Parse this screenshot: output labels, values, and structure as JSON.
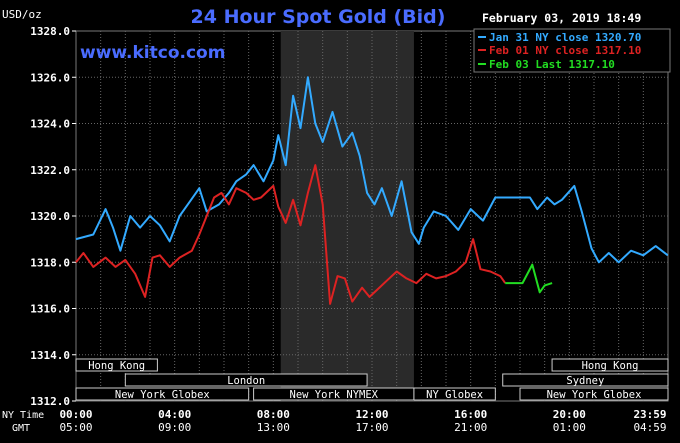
{
  "chart_data": {
    "type": "line",
    "title": "24 Hour Spot Gold (Bid)",
    "timestamp": "February 03, 2019 18:49",
    "site": "www.kitco.com",
    "ylabel": "USD/oz",
    "ylim": [
      1312,
      1328
    ],
    "yticks": [
      "1312.0",
      "1314.0",
      "1316.0",
      "1318.0",
      "1320.0",
      "1322.0",
      "1324.0",
      "1326.0",
      "1328.0"
    ],
    "xlim_hours": [
      0,
      24
    ],
    "xticks_ny": [
      "00:00",
      "04:00",
      "08:00",
      "12:00",
      "16:00",
      "20:00",
      "23:59"
    ],
    "xticks_gmt": [
      "05:00",
      "09:00",
      "13:00",
      "17:00",
      "21:00",
      "01:00",
      "04:59"
    ],
    "x_row_labels": [
      "NY Time",
      "GMT"
    ],
    "grid": true,
    "legend_position": "top-right",
    "shaded_hours": [
      8.3,
      13.7
    ],
    "markets": [
      {
        "name": "Hong Kong",
        "start": 0,
        "end": 3.3,
        "row": 0
      },
      {
        "name": "Hong Kong",
        "start": 19.3,
        "end": 24,
        "row": 0
      },
      {
        "name": "London",
        "start": 2.0,
        "end": 11.8,
        "row": 1
      },
      {
        "name": "Sydney",
        "start": 17.3,
        "end": 24,
        "row": 1
      },
      {
        "name": "New York Globex",
        "start": 0,
        "end": 7.0,
        "row": 2
      },
      {
        "name": "New York NYMEX",
        "start": 7.2,
        "end": 13.7,
        "row": 2
      },
      {
        "name": "NY Globex",
        "start": 13.7,
        "end": 17.0,
        "row": 2
      },
      {
        "name": "New York Globex",
        "start": 18.0,
        "end": 24,
        "row": 2
      }
    ],
    "series": [
      {
        "name": "Jan 31 NY close 1320.70",
        "color": "#33aaff",
        "x": [
          0,
          0.7,
          1.2,
          1.5,
          1.8,
          2.2,
          2.6,
          3.0,
          3.4,
          3.8,
          4.2,
          4.6,
          5.0,
          5.3,
          5.8,
          6.2,
          6.5,
          6.9,
          7.2,
          7.6,
          8.0,
          8.2,
          8.5,
          8.8,
          9.1,
          9.4,
          9.7,
          10.0,
          10.4,
          10.8,
          11.2,
          11.5,
          11.8,
          12.1,
          12.4,
          12.8,
          13.2,
          13.6,
          13.9,
          14.1,
          14.5,
          15.0,
          15.5,
          16.0,
          16.5,
          17.0,
          17.5,
          18.0,
          18.4,
          18.7,
          19.1,
          19.4,
          19.7,
          20.2,
          20.5,
          20.9,
          21.2,
          21.6,
          22.0,
          22.5,
          23.0,
          23.5,
          23.99
        ],
        "y": [
          1319.0,
          1319.2,
          1320.3,
          1319.5,
          1318.5,
          1320.0,
          1319.5,
          1320.0,
          1319.6,
          1318.9,
          1320.0,
          1320.6,
          1321.2,
          1320.2,
          1320.5,
          1321.0,
          1321.5,
          1321.8,
          1322.2,
          1321.5,
          1322.4,
          1323.5,
          1322.2,
          1325.2,
          1323.8,
          1326.0,
          1324.0,
          1323.2,
          1324.5,
          1323.0,
          1323.6,
          1322.6,
          1321.0,
          1320.5,
          1321.2,
          1320.0,
          1321.5,
          1319.3,
          1318.8,
          1319.5,
          1320.2,
          1320.0,
          1319.4,
          1320.3,
          1319.8,
          1320.8,
          1320.8,
          1320.8,
          1320.8,
          1320.3,
          1320.8,
          1320.5,
          1320.7,
          1321.3,
          1320.2,
          1318.6,
          1318.0,
          1318.4,
          1318.0,
          1318.5,
          1318.3,
          1318.7,
          1318.3
        ]
      },
      {
        "name": "Feb 01 NY close 1317.10",
        "color": "#dd2222",
        "x": [
          0,
          0.3,
          0.7,
          1.2,
          1.6,
          2.0,
          2.4,
          2.8,
          3.1,
          3.4,
          3.8,
          4.2,
          4.7,
          5.0,
          5.3,
          5.6,
          5.9,
          6.2,
          6.5,
          6.9,
          7.2,
          7.5,
          8.0,
          8.2,
          8.5,
          8.8,
          9.1,
          9.4,
          9.7,
          10.0,
          10.3,
          10.6,
          10.9,
          11.2,
          11.6,
          11.9,
          12.2,
          12.6,
          13.0,
          13.4,
          13.8,
          14.2,
          14.6,
          15.0,
          15.4,
          15.8,
          16.1,
          16.4,
          16.8,
          17.2,
          17.4
        ],
        "y": [
          1318.0,
          1318.4,
          1317.8,
          1318.2,
          1317.8,
          1318.1,
          1317.5,
          1316.5,
          1318.2,
          1318.3,
          1317.8,
          1318.2,
          1318.5,
          1319.2,
          1320.0,
          1320.8,
          1321.0,
          1320.5,
          1321.2,
          1321.0,
          1320.7,
          1320.8,
          1321.3,
          1320.4,
          1319.7,
          1320.7,
          1319.6,
          1321.0,
          1322.2,
          1320.5,
          1316.2,
          1317.4,
          1317.3,
          1316.3,
          1316.9,
          1316.5,
          1316.8,
          1317.2,
          1317.6,
          1317.3,
          1317.1,
          1317.5,
          1317.3,
          1317.4,
          1317.6,
          1318.0,
          1319.0,
          1317.7,
          1317.6,
          1317.4,
          1317.1
        ]
      },
      {
        "name": "Feb 03 Last 1317.10",
        "color": "#22dd22",
        "x": [
          17.4,
          18.1,
          18.5,
          18.8,
          19.0,
          19.3
        ],
        "y": [
          1317.1,
          1317.1,
          1317.9,
          1316.7,
          1317.0,
          1317.1
        ]
      }
    ]
  }
}
